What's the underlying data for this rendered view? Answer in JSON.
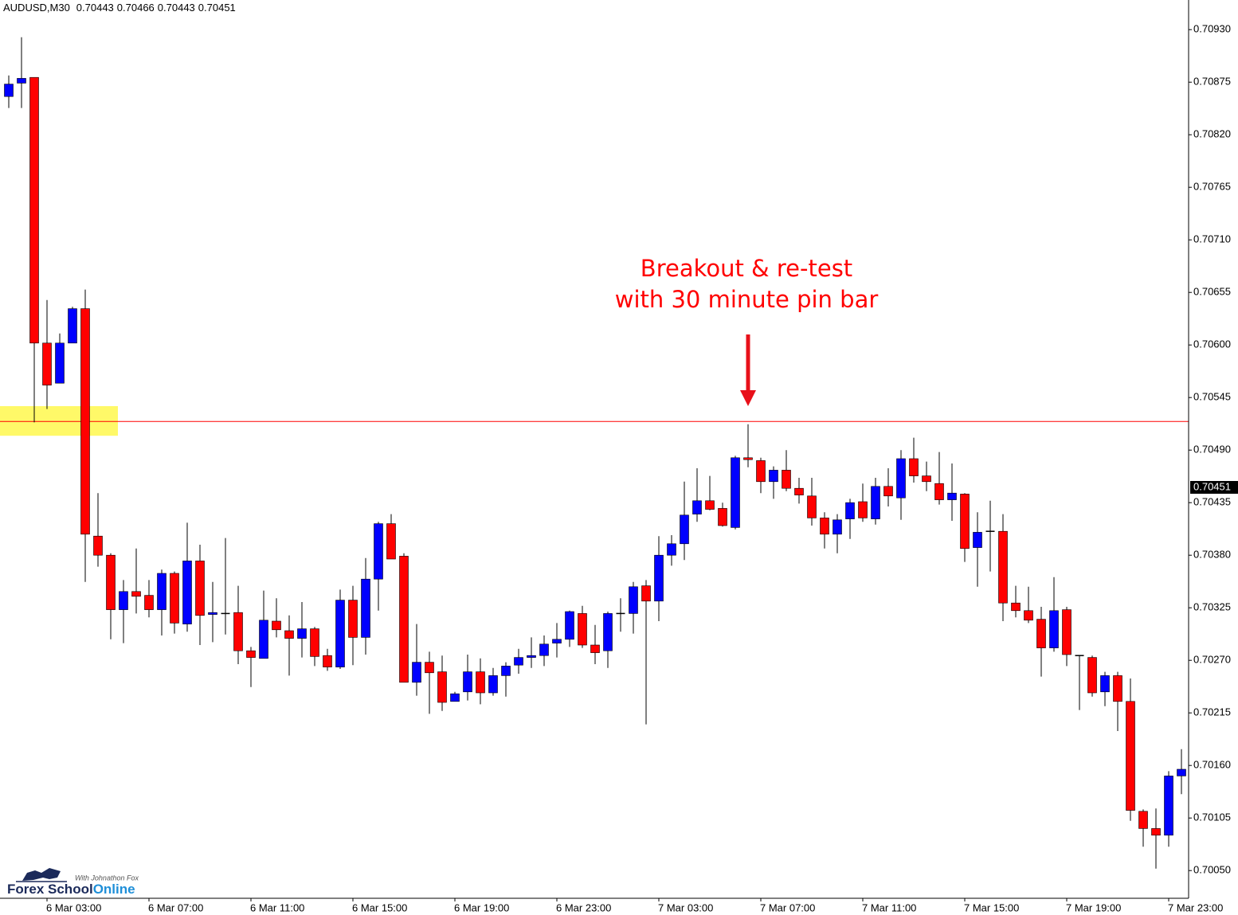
{
  "chart_data": {
    "type": "candlestick",
    "title": "AUDUSD,M30",
    "title_values": [
      0.70443,
      0.70466,
      0.70443,
      0.70451
    ],
    "annotation": [
      "Breakout & re-test",
      "with 30 minute pin bar"
    ],
    "annotation_color": "#ff0000",
    "categories": [
      null,
      null,
      null,
      "6 Mar 03:00",
      null,
      null,
      null,
      null,
      null,
      null,
      null,
      "6 Mar 07:00",
      null,
      null,
      null,
      null,
      null,
      null,
      null,
      "6 Mar 11:00",
      null,
      null,
      null,
      null,
      null,
      null,
      null,
      "6 Mar 15:00",
      null,
      null,
      null,
      null,
      null,
      null,
      null,
      "6 Mar 19:00",
      null,
      null,
      null,
      null,
      null,
      null,
      null,
      "6 Mar 23:00",
      null,
      null,
      null,
      null,
      null,
      null,
      null,
      "7 Mar 03:00",
      null,
      null,
      null,
      null,
      null,
      null,
      null,
      "7 Mar 07:00",
      null,
      null,
      null,
      null,
      null,
      null,
      null,
      "7 Mar 11:00",
      null,
      null,
      null,
      null,
      null,
      null,
      null,
      "7 Mar 15:00",
      null,
      null,
      null,
      null,
      null,
      null,
      null,
      "7 Mar 19:00",
      null,
      null,
      null,
      null,
      null,
      null,
      null,
      "7 Mar 23:00",
      null
    ],
    "open": [
      0.7086,
      0.70874,
      0.7088,
      0.70602,
      0.7056,
      0.70602,
      0.70638,
      0.704,
      0.7038,
      0.70323,
      0.70342,
      0.70338,
      0.70323,
      0.70361,
      0.70308,
      0.70374,
      0.70318,
      0.70319,
      0.7032,
      0.7028,
      0.70272,
      0.70311,
      0.70301,
      0.70293,
      0.70303,
      0.70275,
      0.70263,
      0.70333,
      0.70294,
      0.70355,
      0.70413,
      0.70379,
      0.70247,
      0.70268,
      0.70258,
      0.70227,
      0.70237,
      0.70258,
      0.70236,
      0.70254,
      0.70265,
      0.70273,
      0.70275,
      0.70288,
      0.70292,
      0.70319,
      0.70286,
      0.7028,
      0.70319,
      0.70319,
      0.70348,
      0.70332,
      0.7038,
      0.70392,
      0.70423,
      0.70437,
      0.70429,
      0.70409,
      0.70482,
      0.70479,
      0.70457,
      0.70469,
      0.7045,
      0.70442,
      0.70419,
      0.70402,
      0.70418,
      0.70436,
      0.70418,
      0.70452,
      0.7044,
      0.70481,
      0.70463,
      0.70455,
      0.70438,
      0.70444,
      0.70388,
      0.70405,
      0.70405,
      0.7033,
      0.70322,
      0.70313,
      0.70283,
      0.70323,
      0.70275,
      0.70273,
      0.70237,
      0.70254,
      0.70227,
      0.70112,
      0.70094,
      0.70087,
      0.70149
    ],
    "high": [
      0.70882,
      0.70922,
      0.7088,
      0.70647,
      0.70612,
      0.7064,
      0.70658,
      0.70445,
      0.70382,
      0.70354,
      0.70387,
      0.70354,
      0.70365,
      0.70363,
      0.70414,
      0.70391,
      0.70352,
      0.70398,
      0.70348,
      0.70284,
      0.70343,
      0.70335,
      0.70317,
      0.70331,
      0.70305,
      0.70282,
      0.70344,
      0.70348,
      0.70377,
      0.70415,
      0.70423,
      0.70382,
      0.70308,
      0.70279,
      0.70275,
      0.70237,
      0.70276,
      0.70272,
      0.70262,
      0.70268,
      0.70282,
      0.70294,
      0.70296,
      0.70309,
      0.70322,
      0.70327,
      0.70307,
      0.70321,
      0.70335,
      0.70352,
      0.70354,
      0.704,
      0.70401,
      0.70457,
      0.70471,
      0.70463,
      0.70435,
      0.70484,
      0.70517,
      0.70482,
      0.70473,
      0.7049,
      0.70461,
      0.70461,
      0.70425,
      0.70423,
      0.70439,
      0.70455,
      0.70461,
      0.70471,
      0.7049,
      0.70503,
      0.70478,
      0.70488,
      0.70476,
      0.70445,
      0.70425,
      0.70437,
      0.70423,
      0.70348,
      0.70347,
      0.70326,
      0.70357,
      0.70326,
      0.70275,
      0.70275,
      0.70258,
      0.70258,
      0.70251,
      0.70114,
      0.70115,
      0.70154,
      0.70177
    ],
    "low": [
      0.70848,
      0.70848,
      0.70519,
      0.70533,
      0.7056,
      0.70602,
      0.70352,
      0.70368,
      0.70292,
      0.70288,
      0.70319,
      0.70315,
      0.70296,
      0.70298,
      0.703,
      0.70286,
      0.70289,
      0.70297,
      0.70266,
      0.70242,
      0.70272,
      0.70294,
      0.70254,
      0.70273,
      0.70264,
      0.70259,
      0.70261,
      0.70265,
      0.70276,
      0.70322,
      0.70376,
      0.70247,
      0.70233,
      0.70214,
      0.70217,
      0.70227,
      0.70228,
      0.70224,
      0.70233,
      0.70232,
      0.70256,
      0.70262,
      0.70264,
      0.70273,
      0.70284,
      0.70283,
      0.70266,
      0.70262,
      0.703,
      0.70298,
      0.70203,
      0.70311,
      0.70369,
      0.70375,
      0.70415,
      0.70427,
      0.7041,
      0.70407,
      0.70472,
      0.70445,
      0.70439,
      0.70447,
      0.70434,
      0.70411,
      0.70387,
      0.70382,
      0.70397,
      0.70415,
      0.70412,
      0.70431,
      0.70417,
      0.70456,
      0.70447,
      0.70433,
      0.70416,
      0.70373,
      0.70347,
      0.70363,
      0.70311,
      0.70315,
      0.70309,
      0.70253,
      0.70279,
      0.70264,
      0.70218,
      0.70232,
      0.70222,
      0.70196,
      0.70102,
      0.70075,
      0.70052,
      0.70075,
      0.7013
    ],
    "close": [
      0.70873,
      0.70879,
      0.70602,
      0.70558,
      0.70602,
      0.70638,
      0.70402,
      0.7038,
      0.70323,
      0.70342,
      0.70337,
      0.70323,
      0.70361,
      0.70309,
      0.70374,
      0.70317,
      0.7032,
      0.70319,
      0.7028,
      0.70273,
      0.70312,
      0.70302,
      0.70293,
      0.70303,
      0.70274,
      0.70263,
      0.70333,
      0.70294,
      0.70355,
      0.70413,
      0.70376,
      0.70247,
      0.70268,
      0.70257,
      0.70226,
      0.70235,
      0.70258,
      0.70236,
      0.70254,
      0.70264,
      0.70273,
      0.70275,
      0.70287,
      0.70292,
      0.70321,
      0.70286,
      0.70278,
      0.70319,
      0.70319,
      0.70347,
      0.70332,
      0.7038,
      0.70392,
      0.70422,
      0.70437,
      0.70428,
      0.70411,
      0.70482,
      0.7048,
      0.70457,
      0.70469,
      0.7045,
      0.70443,
      0.70419,
      0.70402,
      0.70417,
      0.70435,
      0.70419,
      0.70452,
      0.70442,
      0.70481,
      0.70463,
      0.70457,
      0.70438,
      0.70445,
      0.70387,
      0.70404,
      0.70405,
      0.7033,
      0.70322,
      0.70312,
      0.70283,
      0.70322,
      0.70276,
      0.70275,
      0.70236,
      0.70254,
      0.70227,
      0.70113,
      0.70094,
      0.70087,
      0.70149,
      0.70156
    ],
    "up_color": "#0000ff",
    "down_color": "#ff0000",
    "wick_color": "#000000",
    "ylim": [
      0.70021,
      0.70961
    ],
    "yticks": [
      {
        "value": 0.7093,
        "label": "0.70930"
      },
      {
        "value": 0.70875,
        "label": "0.70875"
      },
      {
        "value": 0.7082,
        "label": "0.70820"
      },
      {
        "value": 0.70765,
        "label": "0.70765"
      },
      {
        "value": 0.7071,
        "label": "0.70710"
      },
      {
        "value": 0.70655,
        "label": "0.70655"
      },
      {
        "value": 0.706,
        "label": "0.70600"
      },
      {
        "value": 0.70545,
        "label": "0.70545"
      },
      {
        "value": 0.7049,
        "label": "0.70490"
      },
      {
        "value": 0.70435,
        "label": "0.70435"
      },
      {
        "value": 0.7038,
        "label": "0.70380"
      },
      {
        "value": 0.70325,
        "label": "0.70325"
      },
      {
        "value": 0.7027,
        "label": "0.70270"
      },
      {
        "value": 0.70215,
        "label": "0.70215"
      },
      {
        "value": 0.7016,
        "label": "0.70160"
      },
      {
        "value": 0.70105,
        "label": "0.70105"
      },
      {
        "value": 0.7005,
        "label": "0.70050"
      }
    ],
    "last_price": 0.70451,
    "level": 0.7052,
    "level_color": "#ff0000",
    "zone": [
      0.70505,
      0.70536
    ],
    "zone_color": "#fff968",
    "grid": false
  },
  "logo": {
    "tagline": "With Johnathon Fox",
    "name": "Forex School",
    "name_accent": "Online"
  }
}
